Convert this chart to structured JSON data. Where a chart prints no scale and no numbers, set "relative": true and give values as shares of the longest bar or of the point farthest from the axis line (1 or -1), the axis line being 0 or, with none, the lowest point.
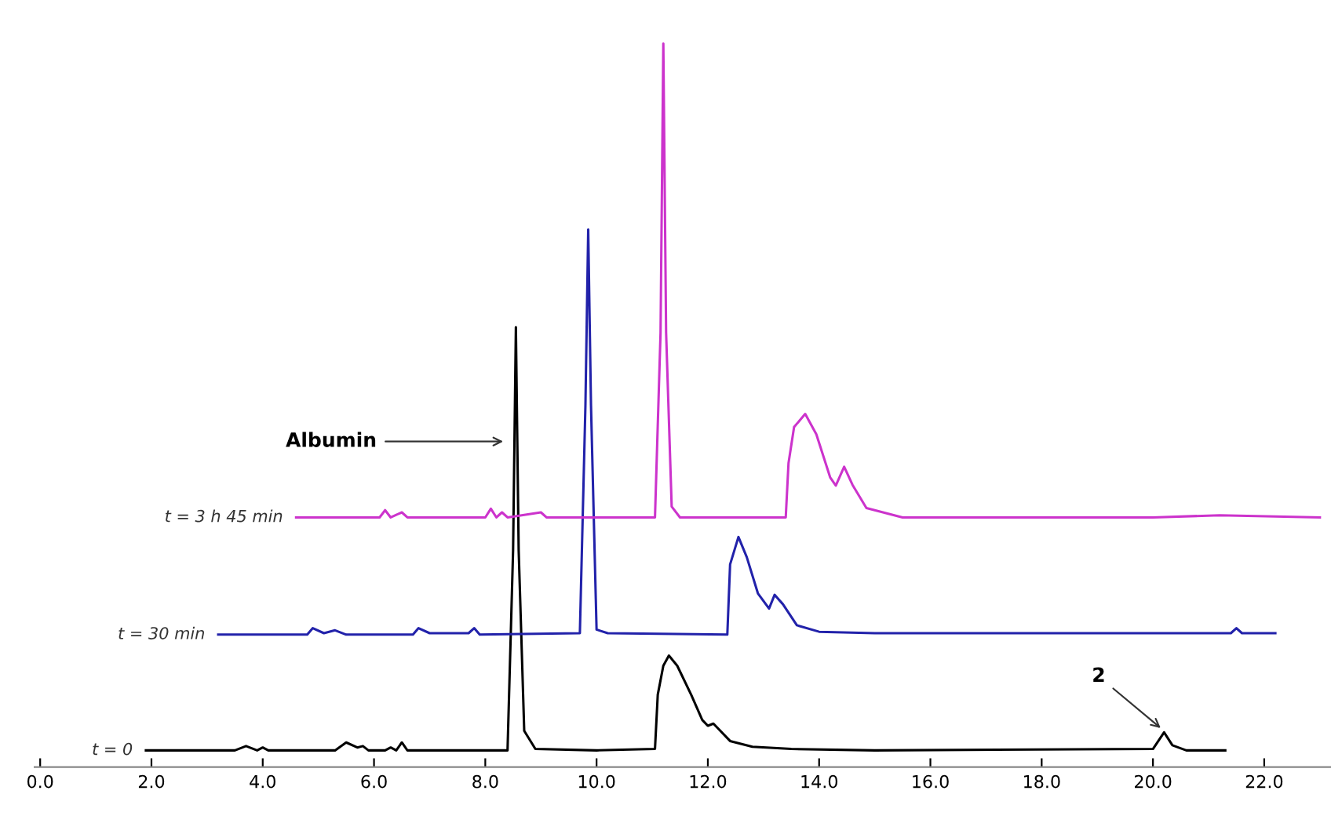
{
  "chart_data": {
    "type": "line",
    "relative": true,
    "tick_labels": "x",
    "grid": false,
    "legend": false,
    "xlim": [
      -0.1,
      23.2
    ],
    "xticks": [
      {
        "value": 0,
        "label": "0.0"
      },
      {
        "value": 2,
        "label": "2.0"
      },
      {
        "value": 4,
        "label": "4.0"
      },
      {
        "value": 6,
        "label": "6.0"
      },
      {
        "value": 8,
        "label": "8.0"
      },
      {
        "value": 10,
        "label": "10.0"
      },
      {
        "value": 12,
        "label": "12.0"
      },
      {
        "value": 14,
        "label": "14.0"
      },
      {
        "value": 16,
        "label": "16.0"
      },
      {
        "value": 18,
        "label": "18.0"
      },
      {
        "value": 20,
        "label": "20.0"
      },
      {
        "value": 22,
        "label": "22.0"
      }
    ],
    "series": [
      {
        "name": "t = 0",
        "color": "#000000",
        "x": [
          1.9,
          3.5,
          3.7,
          3.9,
          4.0,
          4.1,
          5.3,
          5.5,
          5.7,
          5.8,
          5.9,
          6.2,
          6.3,
          6.4,
          6.5,
          6.6,
          8.4,
          8.5,
          8.55,
          8.6,
          8.7,
          8.9,
          10.0,
          11.05,
          11.1,
          11.2,
          11.3,
          11.45,
          11.7,
          11.9,
          12.0,
          12.1,
          12.4,
          12.8,
          13.5,
          15,
          20.0,
          20.2,
          20.35,
          20.6,
          21.3
        ],
        "values": [
          0.023,
          0.023,
          0.029,
          0.023,
          0.027,
          0.023,
          0.023,
          0.034,
          0.027,
          0.029,
          0.023,
          0.023,
          0.027,
          0.023,
          0.034,
          0.023,
          0.023,
          0.3,
          0.608,
          0.3,
          0.05,
          0.025,
          0.023,
          0.025,
          0.1,
          0.14,
          0.154,
          0.14,
          0.1,
          0.065,
          0.057,
          0.06,
          0.036,
          0.028,
          0.025,
          0.023,
          0.025,
          0.048,
          0.03,
          0.023,
          0.023
        ]
      },
      {
        "name": "t = 30 min",
        "color": "#2222aa",
        "x": [
          3.2,
          4.8,
          4.9,
          5.1,
          5.3,
          5.5,
          6.7,
          6.8,
          7.0,
          7.7,
          7.8,
          7.9,
          9.7,
          9.8,
          9.85,
          9.9,
          10.0,
          10.2,
          12.35,
          12.4,
          12.55,
          12.7,
          12.9,
          13.1,
          13.2,
          13.35,
          13.6,
          14.0,
          15,
          21.4,
          21.5,
          21.6,
          22.2
        ],
        "values": [
          0.183,
          0.183,
          0.192,
          0.185,
          0.189,
          0.183,
          0.183,
          0.192,
          0.185,
          0.185,
          0.192,
          0.183,
          0.185,
          0.5,
          0.743,
          0.5,
          0.19,
          0.185,
          0.183,
          0.28,
          0.318,
          0.29,
          0.24,
          0.219,
          0.238,
          0.225,
          0.196,
          0.187,
          0.185,
          0.185,
          0.192,
          0.185,
          0.185
        ]
      },
      {
        "name": "t = 3 h 45 min",
        "color": "#cc33cc",
        "x": [
          4.6,
          6.1,
          6.2,
          6.3,
          6.5,
          6.6,
          6.7,
          8.0,
          8.1,
          8.2,
          8.3,
          8.4,
          9.0,
          9.1,
          11.05,
          11.15,
          11.2,
          11.25,
          11.35,
          11.5,
          13.4,
          13.45,
          13.55,
          13.75,
          13.95,
          14.2,
          14.3,
          14.45,
          14.6,
          14.85,
          15.5,
          20,
          21.2,
          23.0
        ],
        "values": [
          0.345,
          0.345,
          0.355,
          0.345,
          0.352,
          0.345,
          0.345,
          0.345,
          0.357,
          0.345,
          0.352,
          0.345,
          0.352,
          0.345,
          0.345,
          0.6,
          1.0,
          0.6,
          0.36,
          0.345,
          0.345,
          0.42,
          0.47,
          0.488,
          0.46,
          0.4,
          0.389,
          0.415,
          0.39,
          0.358,
          0.345,
          0.345,
          0.348,
          0.345
        ]
      }
    ],
    "annotations": [
      {
        "text": "Albumin",
        "x": 8.4,
        "y": 0.45
      },
      {
        "text": "2",
        "x": 20.2,
        "y": 0.05
      }
    ]
  }
}
